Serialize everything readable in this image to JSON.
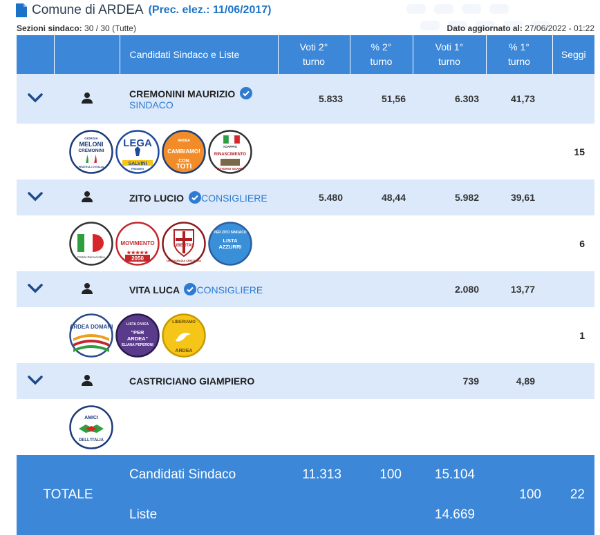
{
  "header": {
    "comune": "Comune di ARDEA",
    "prec": "(Prec. elez.: 11/06/2017)",
    "sezioni_label": "Sezioni sindaco:",
    "sezioni_value": "30 / 30 (Tutte)",
    "aggiornato_label": "Dato aggiornato al:",
    "aggiornato_value": "27/06/2022 - 01:22"
  },
  "columns": {
    "candidati": "Candidati Sindaco e Liste",
    "voti2": "Voti 2°",
    "perc2": "% 2°",
    "voti1": "Voti 1°",
    "perc1": "% 1°",
    "turno": "turno",
    "seggi": "Seggi"
  },
  "candidates": [
    {
      "name": "CREMONINI MAURIZIO",
      "role": "SINDACO",
      "voti2": "5.833",
      "perc2": "51,56",
      "voti1": "6.303",
      "perc1": "41,73",
      "seggi": "15",
      "logos": [
        {
          "top": "GIORGIA",
          "main": "MELONI",
          "sub": "CREMONINI",
          "bottom": "FRATELLI D'ITALIA",
          "bg": "#ffffff",
          "ring": "#1e3a7a",
          "text": "#1e3a7a",
          "icon": "flame-icon"
        },
        {
          "top": "",
          "main": "LEGA",
          "sub": "SALVINI",
          "bottom": "PREMIER",
          "bg": "#ffffff",
          "ring": "#1e4a9e",
          "text": "#1e4a9e",
          "icon": "warrior-icon"
        },
        {
          "top": "ARDEA",
          "main": "CAMBIAMO!",
          "sub": "CON",
          "bottom": "TOTI",
          "bg": "#f28c28",
          "ring": "#1d3f7a",
          "text": "#ffffff",
          "icon": "none"
        },
        {
          "top": "#OAPPIO",
          "main": "RINASCIMENTO",
          "sub": "VITTORIO SGARBI",
          "bottom": "",
          "bg": "#ffffff",
          "ring": "#333333",
          "text": "#b01e23",
          "icon": "flag-icon"
        }
      ]
    },
    {
      "name": "ZITO LUCIO",
      "role": "CONSIGLIERE",
      "voti2": "5.480",
      "perc2": "48,44",
      "voti1": "5.982",
      "perc1": "39,61",
      "seggi": "6",
      "logos": [
        {
          "top": "",
          "main": "PD",
          "sub": "Partito Democratico",
          "bottom": "",
          "bg": "#ffffff",
          "ring": "#333333",
          "text": "#d7262b",
          "icon": "pd-icon"
        },
        {
          "top": "",
          "main": "MOVIMENTO",
          "sub": "★★★★★",
          "bottom": "2050",
          "bg": "#ffffff",
          "ring": "#c4272b",
          "text": "#c4272b",
          "icon": "none"
        },
        {
          "top": "",
          "main": "LIBERTAS",
          "sub": "DEMOCRAZIA CRISTIANA",
          "bottom": "",
          "bg": "#ffffff",
          "ring": "#8a1a1a",
          "text": "#b01e23",
          "icon": "shield-cross-icon"
        },
        {
          "top": "PER ZITO SINDACO",
          "main": "LISTA AZZURRI",
          "sub": "",
          "bottom": "",
          "bg": "#3a8fd9",
          "ring": "#2a5e9e",
          "text": "#ffffff",
          "icon": "none"
        }
      ]
    },
    {
      "name": "VITA LUCA",
      "role": "CONSIGLIERE",
      "voti2": "",
      "perc2": "",
      "voti1": "2.080",
      "perc1": "13,77",
      "seggi": "1",
      "logos": [
        {
          "top": "",
          "main": "ARDEA DOMANI",
          "sub": "",
          "bottom": "",
          "bg": "#ffffff",
          "ring": "#2a4a8a",
          "text": "#2a4a8a",
          "icon": "fields-icon"
        },
        {
          "top": "LISTA CIVICA",
          "main": "\"PER ARDEA\"",
          "sub": "ELIANA PEPERONI",
          "bottom": "",
          "bg": "#5a3a8a",
          "ring": "#2a1a4a",
          "text": "#ffffff",
          "icon": "none"
        },
        {
          "top": "LIBERIAMO",
          "main": "ARDEA",
          "sub": "",
          "bottom": "",
          "bg": "#f5c518",
          "ring": "#c49a00",
          "text": "#6a4a00",
          "icon": "heron-icon"
        }
      ]
    },
    {
      "name": "CASTRICIANO GIAMPIERO",
      "role": "",
      "voti2": "",
      "perc2": "",
      "voti1": "739",
      "perc1": "4,89",
      "seggi": "",
      "logos": [
        {
          "top": "AMICI",
          "main": "DELL'ITALIA",
          "sub": "",
          "bottom": "",
          "bg": "#ffffff",
          "ring": "#1e3a7a",
          "text": "#1e3a7a",
          "icon": "handshake-icon"
        }
      ]
    }
  ],
  "totale": {
    "label": "TOTALE",
    "cand_label": "Candidati Sindaco",
    "liste_label": "Liste",
    "voti2": "11.313",
    "perc2": "100",
    "voti1_cand": "15.104",
    "voti1_liste": "14.669",
    "perc1": "100",
    "seggi": "22"
  }
}
